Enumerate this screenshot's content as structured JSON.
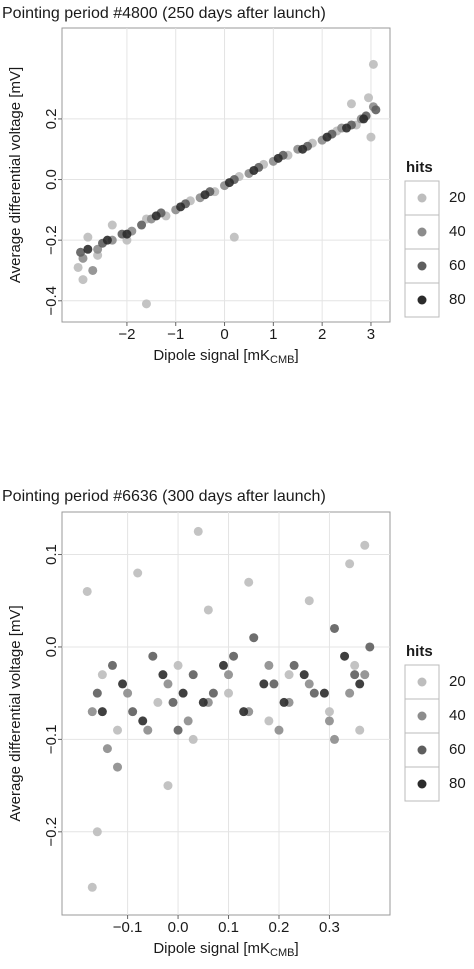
{
  "chart_data": [
    {
      "type": "scatter",
      "title": "Pointing period #4800 (250 days after launch)",
      "x_label": {
        "text": "Dipole signal [mK",
        "sub": "CMB",
        "end": "]"
      },
      "y_label": "Average differential voltage [mV]",
      "legend_title": "hits",
      "grid": true,
      "xlim": [
        -3.33,
        3.39
      ],
      "ylim": [
        -0.47,
        0.5
      ],
      "xticks": [
        {
          "value": -2,
          "label": "−2"
        },
        {
          "value": -1,
          "label": "−1"
        },
        0,
        1,
        2,
        3
      ],
      "yticks": [
        0.2,
        {
          "value": 0,
          "label": "0.0"
        },
        {
          "value": -0.2,
          "label": "−0.2"
        },
        {
          "value": -0.4,
          "label": "−0.4"
        }
      ],
      "series": [
        {
          "name": "20",
          "color": "#bdbdbd",
          "x": [
            -3.0,
            -2.8,
            -2.6,
            -2.3,
            -2.0,
            -1.6,
            -1.2,
            -0.7,
            -0.2,
            0.3,
            0.8,
            1.3,
            1.8,
            2.3,
            2.7,
            2.95,
            3.05,
            -1.6,
            0.2,
            3.0,
            -2.9,
            2.6
          ],
          "y": [
            -0.29,
            -0.19,
            -0.25,
            -0.15,
            -0.2,
            -0.13,
            -0.12,
            -0.07,
            -0.04,
            0.01,
            0.05,
            0.08,
            0.12,
            0.16,
            0.18,
            0.27,
            0.38,
            -0.41,
            -0.19,
            0.14,
            -0.33,
            0.25
          ]
        },
        {
          "name": "40",
          "color": "#8c8c8c",
          "x": [
            -2.9,
            -2.6,
            -2.3,
            -1.9,
            -1.5,
            -1.0,
            -0.5,
            0.0,
            0.5,
            1.0,
            1.5,
            2.0,
            2.4,
            2.8,
            3.05,
            -2.7
          ],
          "y": [
            -0.26,
            -0.23,
            -0.2,
            -0.17,
            -0.13,
            -0.1,
            -0.06,
            -0.02,
            0.02,
            0.06,
            0.1,
            0.13,
            0.17,
            0.2,
            0.24,
            -0.3
          ]
        },
        {
          "name": "60",
          "color": "#5e5e5e",
          "x": [
            -2.95,
            -2.5,
            -2.1,
            -1.7,
            -1.3,
            -0.8,
            -0.3,
            0.2,
            0.7,
            1.2,
            1.7,
            2.2,
            2.6,
            2.9,
            3.1
          ],
          "y": [
            -0.24,
            -0.21,
            -0.18,
            -0.15,
            -0.11,
            -0.08,
            -0.04,
            0.0,
            0.04,
            0.08,
            0.11,
            0.15,
            0.18,
            0.21,
            0.23
          ]
        },
        {
          "name": "80",
          "color": "#2b2b2b",
          "x": [
            -2.8,
            -2.4,
            -2.0,
            -1.4,
            -0.9,
            -0.4,
            0.1,
            0.6,
            1.1,
            1.6,
            2.1,
            2.5,
            2.85
          ],
          "y": [
            -0.23,
            -0.2,
            -0.18,
            -0.12,
            -0.09,
            -0.05,
            -0.01,
            0.03,
            0.07,
            0.1,
            0.14,
            0.17,
            0.2
          ]
        }
      ]
    },
    {
      "type": "scatter",
      "title": "Pointing period #6636 (300 days after launch)",
      "x_label": {
        "text": "Dipole signal [mK",
        "sub": "CMB",
        "end": "]"
      },
      "y_label": "Average differential voltage [mV]",
      "legend_title": "hits",
      "grid": true,
      "xlim": [
        -0.23,
        0.42
      ],
      "ylim": [
        -0.29,
        0.146
      ],
      "xticks": [
        {
          "value": -0.1,
          "label": "−0.1"
        },
        {
          "value": 0,
          "label": "0.0"
        },
        0.1,
        0.2,
        0.3
      ],
      "yticks": [
        0.1,
        {
          "value": 0,
          "label": "0.0"
        },
        {
          "value": -0.1,
          "label": "−0.1"
        },
        {
          "value": -0.2,
          "label": "−0.2"
        }
      ],
      "series": [
        {
          "name": "20",
          "color": "#bdbdbd",
          "x": [
            -0.18,
            -0.15,
            -0.12,
            -0.08,
            -0.04,
            0.0,
            0.03,
            0.06,
            0.1,
            0.14,
            0.18,
            0.22,
            0.26,
            0.3,
            0.34,
            0.37,
            -0.16,
            0.04,
            -0.02,
            0.36,
            0.35,
            -0.17
          ],
          "y": [
            0.06,
            -0.03,
            -0.09,
            0.08,
            -0.06,
            -0.02,
            -0.1,
            0.04,
            -0.05,
            0.07,
            -0.08,
            -0.03,
            0.05,
            -0.07,
            0.09,
            0.11,
            -0.2,
            0.125,
            -0.15,
            -0.09,
            -0.02,
            -0.26
          ]
        },
        {
          "name": "40",
          "color": "#8c8c8c",
          "x": [
            -0.17,
            -0.14,
            -0.1,
            -0.06,
            -0.02,
            0.02,
            0.06,
            0.1,
            0.14,
            0.18,
            0.22,
            0.26,
            0.3,
            0.34,
            0.37,
            -0.12,
            0.2,
            0.31
          ],
          "y": [
            -0.07,
            -0.11,
            -0.05,
            -0.09,
            -0.04,
            -0.08,
            -0.06,
            -0.03,
            -0.07,
            -0.02,
            -0.06,
            -0.04,
            -0.08,
            -0.05,
            -0.03,
            -0.13,
            -0.09,
            -0.1
          ]
        },
        {
          "name": "60",
          "color": "#5e5e5e",
          "x": [
            -0.16,
            -0.13,
            -0.09,
            -0.05,
            -0.01,
            0.03,
            0.07,
            0.11,
            0.15,
            0.19,
            0.23,
            0.27,
            0.31,
            0.35,
            0.38,
            0.0
          ],
          "y": [
            -0.05,
            -0.02,
            -0.07,
            -0.01,
            -0.06,
            -0.03,
            -0.05,
            -0.01,
            0.01,
            -0.04,
            -0.02,
            -0.05,
            0.02,
            -0.03,
            0.0,
            -0.09
          ]
        },
        {
          "name": "80",
          "color": "#2b2b2b",
          "x": [
            -0.15,
            -0.11,
            -0.07,
            -0.03,
            0.01,
            0.05,
            0.09,
            0.13,
            0.17,
            0.21,
            0.25,
            0.29,
            0.33,
            0.36
          ],
          "y": [
            -0.07,
            -0.04,
            -0.08,
            -0.03,
            -0.05,
            -0.06,
            -0.02,
            -0.07,
            -0.04,
            -0.06,
            -0.03,
            -0.05,
            -0.01,
            -0.04
          ]
        }
      ]
    }
  ]
}
